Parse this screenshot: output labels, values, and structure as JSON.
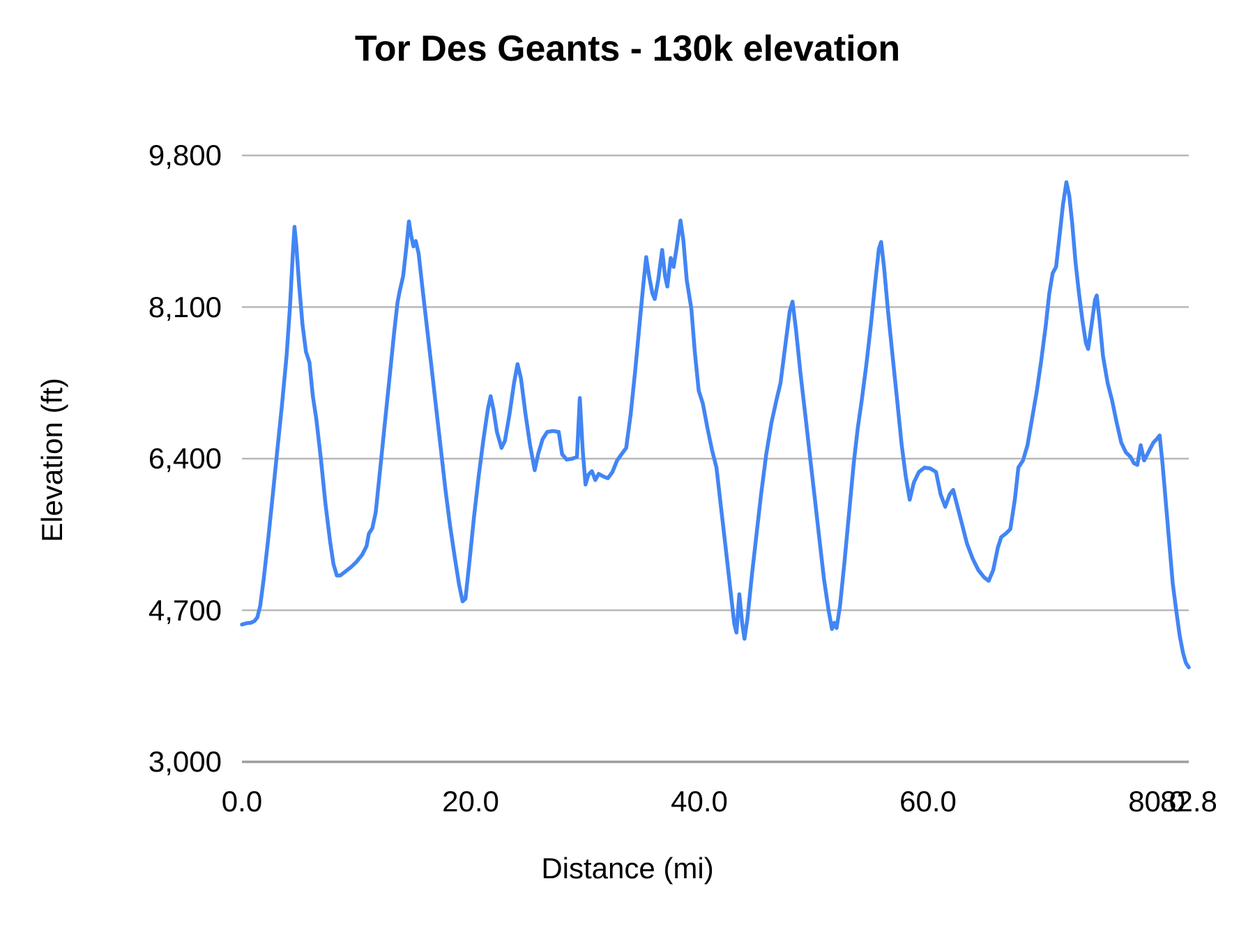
{
  "colors": {
    "background": "#ffffff",
    "line": "#4285f4",
    "gridline": "#b7b7b7",
    "axis_line": "#9e9e9e",
    "text": "#000000"
  },
  "chart_data": {
    "type": "line",
    "title": "Tor Des Geants - 130k elevation",
    "xlabel": "Distance (mi)",
    "ylabel": "Elevation (ft)",
    "xlim": [
      0,
      82.8
    ],
    "ylim": [
      3000,
      9800
    ],
    "grid": "horizontal-only",
    "legend": "none",
    "x_ticks": {
      "values": [
        0,
        20,
        40,
        60,
        80,
        82.8
      ],
      "labels": [
        "0.0",
        "20.0",
        "40.0",
        "60.0",
        "80.0",
        "82.8"
      ]
    },
    "y_ticks": {
      "values": [
        3000,
        4700,
        6400,
        8100,
        9800
      ],
      "labels": [
        "3,000",
        "4,700",
        "6,400",
        "8,100",
        "9,800"
      ]
    },
    "series": [
      {
        "name": "Elevation",
        "color": "#4285f4",
        "points": [
          [
            0.0,
            4540
          ],
          [
            0.4,
            4555
          ],
          [
            0.8,
            4560
          ],
          [
            1.1,
            4580
          ],
          [
            1.35,
            4620
          ],
          [
            1.6,
            4750
          ],
          [
            1.9,
            5050
          ],
          [
            2.3,
            5500
          ],
          [
            2.7,
            6000
          ],
          [
            3.1,
            6500
          ],
          [
            3.5,
            7000
          ],
          [
            3.9,
            7550
          ],
          [
            4.2,
            8100
          ],
          [
            4.45,
            8700
          ],
          [
            4.6,
            9000
          ],
          [
            4.75,
            8800
          ],
          [
            5.0,
            8350
          ],
          [
            5.3,
            7900
          ],
          [
            5.6,
            7600
          ],
          [
            5.9,
            7480
          ],
          [
            6.2,
            7100
          ],
          [
            6.5,
            6850
          ],
          [
            6.9,
            6400
          ],
          [
            7.3,
            5900
          ],
          [
            7.7,
            5480
          ],
          [
            8.0,
            5220
          ],
          [
            8.3,
            5090
          ],
          [
            8.6,
            5090
          ],
          [
            9.0,
            5130
          ],
          [
            9.5,
            5180
          ],
          [
            10.0,
            5240
          ],
          [
            10.5,
            5320
          ],
          [
            10.9,
            5420
          ],
          [
            11.1,
            5560
          ],
          [
            11.4,
            5620
          ],
          [
            11.7,
            5800
          ],
          [
            12.1,
            6300
          ],
          [
            12.5,
            6800
          ],
          [
            12.9,
            7300
          ],
          [
            13.3,
            7800
          ],
          [
            13.6,
            8150
          ],
          [
            13.8,
            8280
          ],
          [
            14.1,
            8450
          ],
          [
            14.4,
            8800
          ],
          [
            14.6,
            9060
          ],
          [
            14.8,
            8900
          ],
          [
            15.0,
            8780
          ],
          [
            15.2,
            8840
          ],
          [
            15.45,
            8700
          ],
          [
            15.8,
            8300
          ],
          [
            16.2,
            7850
          ],
          [
            16.6,
            7400
          ],
          [
            17.0,
            6950
          ],
          [
            17.4,
            6500
          ],
          [
            17.8,
            6050
          ],
          [
            18.2,
            5650
          ],
          [
            18.6,
            5300
          ],
          [
            19.0,
            4980
          ],
          [
            19.3,
            4800
          ],
          [
            19.55,
            4830
          ],
          [
            19.9,
            5250
          ],
          [
            20.3,
            5750
          ],
          [
            20.7,
            6200
          ],
          [
            21.1,
            6600
          ],
          [
            21.5,
            6950
          ],
          [
            21.75,
            7100
          ],
          [
            22.0,
            6950
          ],
          [
            22.3,
            6700
          ],
          [
            22.7,
            6520
          ],
          [
            23.0,
            6600
          ],
          [
            23.4,
            6900
          ],
          [
            23.8,
            7250
          ],
          [
            24.1,
            7460
          ],
          [
            24.4,
            7300
          ],
          [
            24.8,
            6900
          ],
          [
            25.2,
            6550
          ],
          [
            25.6,
            6270
          ],
          [
            25.9,
            6450
          ],
          [
            26.3,
            6620
          ],
          [
            26.7,
            6700
          ],
          [
            27.2,
            6710
          ],
          [
            27.7,
            6700
          ],
          [
            28.0,
            6450
          ],
          [
            28.4,
            6390
          ],
          [
            28.9,
            6400
          ],
          [
            29.3,
            6420
          ],
          [
            29.55,
            7080
          ],
          [
            29.8,
            6500
          ],
          [
            30.05,
            6110
          ],
          [
            30.3,
            6220
          ],
          [
            30.6,
            6260
          ],
          [
            30.9,
            6160
          ],
          [
            31.2,
            6230
          ],
          [
            31.6,
            6200
          ],
          [
            32.0,
            6180
          ],
          [
            32.4,
            6250
          ],
          [
            32.8,
            6380
          ],
          [
            33.2,
            6450
          ],
          [
            33.6,
            6520
          ],
          [
            34.0,
            6900
          ],
          [
            34.4,
            7400
          ],
          [
            34.8,
            7950
          ],
          [
            35.1,
            8350
          ],
          [
            35.35,
            8660
          ],
          [
            35.6,
            8450
          ],
          [
            35.9,
            8250
          ],
          [
            36.1,
            8190
          ],
          [
            36.4,
            8400
          ],
          [
            36.75,
            8740
          ],
          [
            37.0,
            8450
          ],
          [
            37.2,
            8330
          ],
          [
            37.5,
            8650
          ],
          [
            37.75,
            8550
          ],
          [
            38.0,
            8750
          ],
          [
            38.35,
            9070
          ],
          [
            38.6,
            8850
          ],
          [
            38.9,
            8400
          ],
          [
            39.3,
            8080
          ],
          [
            39.6,
            7600
          ],
          [
            39.95,
            7160
          ],
          [
            40.3,
            7020
          ],
          [
            40.7,
            6750
          ],
          [
            41.1,
            6500
          ],
          [
            41.5,
            6300
          ],
          [
            41.9,
            5850
          ],
          [
            42.3,
            5400
          ],
          [
            42.7,
            4950
          ],
          [
            43.05,
            4550
          ],
          [
            43.25,
            4450
          ],
          [
            43.5,
            4880
          ],
          [
            43.75,
            4550
          ],
          [
            43.95,
            4380
          ],
          [
            44.2,
            4600
          ],
          [
            44.6,
            5100
          ],
          [
            45.0,
            5550
          ],
          [
            45.4,
            6000
          ],
          [
            45.85,
            6450
          ],
          [
            46.3,
            6800
          ],
          [
            46.75,
            7060
          ],
          [
            47.1,
            7250
          ],
          [
            47.5,
            7650
          ],
          [
            47.9,
            8050
          ],
          [
            48.15,
            8160
          ],
          [
            48.45,
            7850
          ],
          [
            48.85,
            7350
          ],
          [
            49.3,
            6850
          ],
          [
            49.7,
            6400
          ],
          [
            50.1,
            5950
          ],
          [
            50.5,
            5500
          ],
          [
            50.9,
            5050
          ],
          [
            51.3,
            4700
          ],
          [
            51.6,
            4490
          ],
          [
            51.8,
            4560
          ],
          [
            52.0,
            4500
          ],
          [
            52.3,
            4750
          ],
          [
            52.7,
            5250
          ],
          [
            53.1,
            5800
          ],
          [
            53.5,
            6350
          ],
          [
            53.85,
            6740
          ],
          [
            54.2,
            7050
          ],
          [
            54.6,
            7450
          ],
          [
            55.0,
            7900
          ],
          [
            55.4,
            8400
          ],
          [
            55.7,
            8750
          ],
          [
            55.9,
            8830
          ],
          [
            56.15,
            8550
          ],
          [
            56.5,
            8050
          ],
          [
            56.9,
            7550
          ],
          [
            57.3,
            7050
          ],
          [
            57.7,
            6550
          ],
          [
            58.05,
            6200
          ],
          [
            58.4,
            5940
          ],
          [
            58.75,
            6130
          ],
          [
            59.2,
            6250
          ],
          [
            59.7,
            6300
          ],
          [
            60.2,
            6290
          ],
          [
            60.7,
            6250
          ],
          [
            61.1,
            6000
          ],
          [
            61.5,
            5860
          ],
          [
            61.9,
            6000
          ],
          [
            62.2,
            6050
          ],
          [
            62.6,
            5850
          ],
          [
            63.0,
            5650
          ],
          [
            63.4,
            5450
          ],
          [
            63.9,
            5280
          ],
          [
            64.4,
            5150
          ],
          [
            64.9,
            5070
          ],
          [
            65.3,
            5030
          ],
          [
            65.7,
            5150
          ],
          [
            66.1,
            5400
          ],
          [
            66.4,
            5520
          ],
          [
            66.8,
            5560
          ],
          [
            67.2,
            5610
          ],
          [
            67.6,
            5950
          ],
          [
            67.9,
            6300
          ],
          [
            68.3,
            6380
          ],
          [
            68.7,
            6550
          ],
          [
            69.1,
            6850
          ],
          [
            69.5,
            7150
          ],
          [
            69.9,
            7500
          ],
          [
            70.3,
            7900
          ],
          [
            70.6,
            8250
          ],
          [
            70.9,
            8480
          ],
          [
            71.2,
            8550
          ],
          [
            71.5,
            8900
          ],
          [
            71.8,
            9250
          ],
          [
            72.1,
            9500
          ],
          [
            72.35,
            9350
          ],
          [
            72.6,
            9050
          ],
          [
            72.9,
            8600
          ],
          [
            73.2,
            8250
          ],
          [
            73.5,
            7950
          ],
          [
            73.8,
            7700
          ],
          [
            74.0,
            7630
          ],
          [
            74.3,
            7900
          ],
          [
            74.6,
            8180
          ],
          [
            74.75,
            8230
          ],
          [
            75.0,
            7950
          ],
          [
            75.3,
            7550
          ],
          [
            75.7,
            7250
          ],
          [
            76.1,
            7050
          ],
          [
            76.5,
            6800
          ],
          [
            76.9,
            6580
          ],
          [
            77.3,
            6470
          ],
          [
            77.7,
            6420
          ],
          [
            78.0,
            6350
          ],
          [
            78.3,
            6330
          ],
          [
            78.6,
            6550
          ],
          [
            78.9,
            6380
          ],
          [
            79.3,
            6480
          ],
          [
            79.7,
            6580
          ],
          [
            80.0,
            6620
          ],
          [
            80.25,
            6660
          ],
          [
            80.5,
            6350
          ],
          [
            80.8,
            5900
          ],
          [
            81.1,
            5450
          ],
          [
            81.4,
            5000
          ],
          [
            81.7,
            4700
          ],
          [
            82.0,
            4420
          ],
          [
            82.3,
            4220
          ],
          [
            82.55,
            4110
          ],
          [
            82.8,
            4060
          ]
        ]
      }
    ]
  }
}
